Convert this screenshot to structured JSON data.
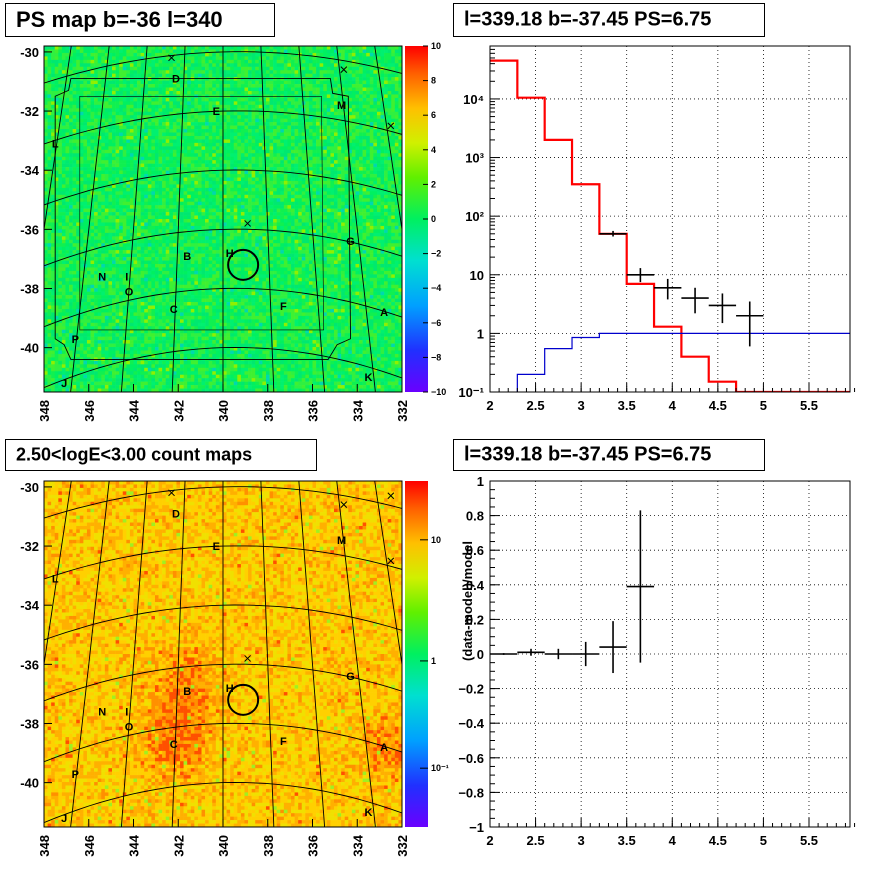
{
  "panels": {
    "ps_map": {
      "title": "PS map b=-36 l=340",
      "x_ticks": [
        "348",
        "346",
        "344",
        "342",
        "340",
        "338",
        "336",
        "334",
        "332"
      ],
      "y_ticks": [
        "-30",
        "-32",
        "-34",
        "-36",
        "-38",
        "-40"
      ],
      "colorbar_ticks": [
        "10",
        "8",
        "6",
        "4",
        "2",
        "0",
        "−2",
        "−4",
        "−6",
        "−8",
        "−10"
      ],
      "source_labels": [
        "D",
        "E",
        "M",
        "L",
        "G",
        "B",
        "H",
        "N",
        "I",
        "O",
        "C",
        "F",
        "A",
        "P",
        "J",
        "K"
      ]
    },
    "spectrum": {
      "title": "l=339.18 b=-37.45 PS=6.75"
    },
    "count_map": {
      "title": "2.50<logE<3.00 count maps",
      "x_ticks": [
        "348",
        "346",
        "344",
        "342",
        "340",
        "338",
        "336",
        "334",
        "332"
      ],
      "y_ticks": [
        "-30",
        "-32",
        "-34",
        "-36",
        "-38",
        "-40"
      ],
      "colorbar_ticks": [
        "10",
        "1",
        "10⁻¹"
      ],
      "source_labels": [
        "D",
        "E",
        "M",
        "L",
        "G",
        "B",
        "H",
        "N",
        "I",
        "O",
        "C",
        "F",
        "A",
        "P",
        "J",
        "K"
      ]
    },
    "residual": {
      "title": "l=339.18 b=-37.45 PS=6.75"
    }
  },
  "chart_data": [
    {
      "type": "heatmap",
      "title": "PS map b=-36 l=340",
      "xlim": [
        348,
        332
      ],
      "ylim": [
        -41.5,
        -29.8
      ],
      "zlim": [
        -10,
        10
      ],
      "circle_center": [
        339.1,
        -37.2
      ],
      "sources": [
        {
          "label": "D",
          "x": 342.1,
          "y": -30.9
        },
        {
          "label": "E",
          "x": 340.3,
          "y": -32.0
        },
        {
          "label": "M",
          "x": 334.7,
          "y": -31.8
        },
        {
          "label": "L",
          "x": 347.5,
          "y": -33.1
        },
        {
          "label": "G",
          "x": 334.3,
          "y": -36.4
        },
        {
          "label": "B",
          "x": 341.6,
          "y": -36.9
        },
        {
          "label": "H",
          "x": 339.7,
          "y": -36.8
        },
        {
          "label": "N",
          "x": 345.4,
          "y": -37.6
        },
        {
          "label": "I",
          "x": 344.3,
          "y": -37.6
        },
        {
          "label": "O",
          "x": 344.2,
          "y": -38.1
        },
        {
          "label": "C",
          "x": 342.2,
          "y": -38.7
        },
        {
          "label": "F",
          "x": 337.3,
          "y": -38.6
        },
        {
          "label": "A",
          "x": 332.8,
          "y": -38.8
        },
        {
          "label": "P",
          "x": 346.6,
          "y": -39.7
        },
        {
          "label": "J",
          "x": 347.1,
          "y": -41.2
        },
        {
          "label": "K",
          "x": 333.5,
          "y": -41.0
        }
      ]
    },
    {
      "type": "step",
      "title": "l=339.18 b=-37.45 PS=6.75",
      "xlim": [
        2,
        5.95
      ],
      "ylim": [
        0.1,
        80000
      ],
      "yscale": "log",
      "x_ticks": [
        2,
        2.5,
        3,
        3.5,
        4,
        4.5,
        5,
        5.5
      ],
      "y_ticks": [
        "10⁻¹",
        "1",
        "10",
        "10²",
        "10³",
        "10⁴"
      ],
      "edges": [
        2.0,
        2.3,
        2.6,
        2.9,
        3.2,
        3.5,
        3.8,
        4.1,
        4.4,
        4.7,
        5.0,
        5.3,
        5.6,
        5.95
      ],
      "series": [
        {
          "name": "",
          "color": "#ff0000",
          "values": [
            45000,
            10500,
            2000,
            350,
            50,
            7.0,
            1.3,
            0.4,
            0.15,
            0.1,
            0.1,
            0.1,
            0.1
          ]
        },
        {
          "name": "",
          "color": "#0000cc",
          "values": [
            0.05,
            0.2,
            0.55,
            0.85,
            1.0,
            1.0,
            1.0,
            1.0,
            1.0,
            1.0,
            1.0,
            1.0,
            1.0
          ]
        }
      ],
      "data_points": [
        {
          "x": 3.35,
          "y": 50,
          "xerr": 0.15,
          "ylo": 45,
          "yhi": 56
        },
        {
          "x": 3.65,
          "y": 10,
          "xerr": 0.15,
          "ylo": 7.5,
          "yhi": 13
        },
        {
          "x": 3.95,
          "y": 6,
          "xerr": 0.15,
          "ylo": 3.8,
          "yhi": 8.5
        },
        {
          "x": 4.25,
          "y": 4,
          "xerr": 0.15,
          "ylo": 2.2,
          "yhi": 6.0
        },
        {
          "x": 4.55,
          "y": 3,
          "xerr": 0.15,
          "ylo": 1.5,
          "yhi": 4.8
        },
        {
          "x": 4.85,
          "y": 2,
          "xerr": 0.15,
          "ylo": 0.6,
          "yhi": 3.5
        }
      ]
    },
    {
      "type": "heatmap",
      "title": "2.50<logE<3.00 count maps",
      "xlim": [
        348,
        332
      ],
      "ylim": [
        -41.5,
        -29.8
      ],
      "zscale": "log",
      "circle_center": [
        339.1,
        -37.2
      ]
    },
    {
      "type": "scatter",
      "title": "l=339.18 b=-37.45 PS=6.75",
      "xlim": [
        2,
        5.95
      ],
      "ylim": [
        -1,
        1
      ],
      "ylabel": "(data-model)/model",
      "x_ticks": [
        2,
        2.5,
        3,
        3.5,
        4,
        4.5,
        5,
        5.5
      ],
      "y_ticks": [
        -1,
        -0.8,
        -0.6,
        -0.4,
        -0.2,
        0,
        0.2,
        0.4,
        0.6,
        0.8,
        1
      ],
      "points": [
        {
          "x": 2.15,
          "y": 0.0,
          "xerr": 0.15,
          "yerr": 0.005
        },
        {
          "x": 2.45,
          "y": 0.01,
          "xerr": 0.15,
          "yerr": 0.02
        },
        {
          "x": 2.75,
          "y": 0.0,
          "xerr": 0.15,
          "yerr": 0.03
        },
        {
          "x": 3.05,
          "y": 0.0,
          "xerr": 0.15,
          "yerr": 0.07
        },
        {
          "x": 3.35,
          "y": 0.04,
          "xerr": 0.15,
          "yerr": 0.15
        },
        {
          "x": 3.65,
          "y": 0.39,
          "xerr": 0.15,
          "yerr": 0.44
        }
      ]
    }
  ]
}
